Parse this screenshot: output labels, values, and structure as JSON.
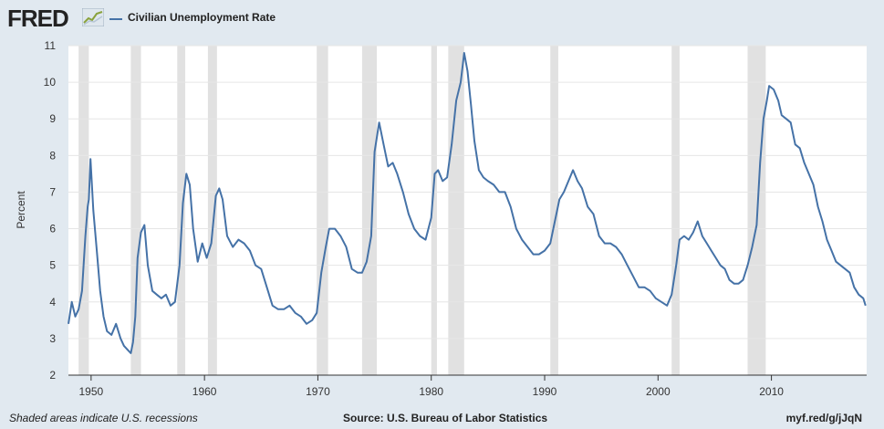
{
  "header": {
    "logo_text": "FRED",
    "logo_icon": "line-chart-icon",
    "legend_label": "Civilian Unemployment Rate",
    "series_color": "#4572a7"
  },
  "footer": {
    "recession_note": "Shaded areas indicate U.S. recessions",
    "source": "Source: U.S. Bureau of Labor Statistics",
    "short_url": "myf.red/g/jJqN"
  },
  "chart_data": {
    "type": "line",
    "ylabel": "Percent",
    "xlabel": "",
    "ylim": [
      2,
      11
    ],
    "xlim": [
      1948,
      2018.4
    ],
    "yticks": [
      "2",
      "3",
      "4",
      "5",
      "6",
      "7",
      "8",
      "9",
      "10",
      "11"
    ],
    "xticks": [
      "1950",
      "1960",
      "1970",
      "1980",
      "1990",
      "2000",
      "2010"
    ],
    "grid": true,
    "legend_position": "top-left",
    "recessions": [
      [
        1948.9,
        1949.8
      ],
      [
        1953.5,
        1954.4
      ],
      [
        1957.6,
        1958.3
      ],
      [
        1960.3,
        1961.1
      ],
      [
        1969.9,
        1970.9
      ],
      [
        1973.9,
        1975.2
      ],
      [
        1980.0,
        1980.5
      ],
      [
        1981.5,
        1982.9
      ],
      [
        1990.5,
        1991.2
      ],
      [
        2001.2,
        2001.9
      ],
      [
        2007.9,
        2009.5
      ]
    ],
    "series": [
      {
        "name": "Civilian Unemployment Rate",
        "color": "#4572a7",
        "x": [
          1948.0,
          1948.3,
          1948.6,
          1948.9,
          1949.2,
          1949.5,
          1949.7,
          1949.8,
          1949.95,
          1950.2,
          1950.5,
          1950.8,
          1951.1,
          1951.4,
          1951.8,
          1952.2,
          1952.6,
          1952.9,
          1953.2,
          1953.5,
          1953.7,
          1953.9,
          1954.1,
          1954.4,
          1954.7,
          1955.0,
          1955.4,
          1955.8,
          1956.2,
          1956.6,
          1957.0,
          1957.4,
          1957.8,
          1958.1,
          1958.4,
          1958.7,
          1959.0,
          1959.4,
          1959.8,
          1960.2,
          1960.6,
          1961.0,
          1961.3,
          1961.6,
          1962.0,
          1962.5,
          1963.0,
          1963.5,
          1964.0,
          1964.5,
          1965.0,
          1965.5,
          1966.0,
          1966.5,
          1967.0,
          1967.5,
          1968.0,
          1968.5,
          1969.0,
          1969.5,
          1969.9,
          1970.3,
          1970.7,
          1971.0,
          1971.5,
          1972.0,
          1972.5,
          1973.0,
          1973.5,
          1973.9,
          1974.3,
          1974.7,
          1975.0,
          1975.4,
          1975.8,
          1976.2,
          1976.6,
          1977.0,
          1977.5,
          1978.0,
          1978.5,
          1979.0,
          1979.5,
          1980.0,
          1980.3,
          1980.6,
          1981.0,
          1981.4,
          1981.8,
          1982.2,
          1982.6,
          1982.9,
          1983.2,
          1983.5,
          1983.8,
          1984.2,
          1984.6,
          1985.0,
          1985.5,
          1986.0,
          1986.5,
          1987.0,
          1987.5,
          1988.0,
          1988.5,
          1989.0,
          1989.5,
          1990.0,
          1990.5,
          1990.9,
          1991.3,
          1991.7,
          1992.1,
          1992.5,
          1992.9,
          1993.3,
          1993.8,
          1994.3,
          1994.8,
          1995.3,
          1995.8,
          1996.3,
          1996.8,
          1997.3,
          1997.8,
          1998.3,
          1998.8,
          1999.3,
          1999.8,
          2000.3,
          2000.8,
          2001.2,
          2001.6,
          2001.9,
          2002.3,
          2002.7,
          2003.1,
          2003.5,
          2003.9,
          2004.3,
          2004.7,
          2005.1,
          2005.5,
          2005.9,
          2006.3,
          2006.7,
          2007.1,
          2007.5,
          2007.9,
          2008.3,
          2008.7,
          2009.0,
          2009.3,
          2009.6,
          2009.8,
          2010.2,
          2010.6,
          2010.9,
          2011.3,
          2011.7,
          2012.1,
          2012.5,
          2012.9,
          2013.3,
          2013.7,
          2014.1,
          2014.5,
          2014.9,
          2015.3,
          2015.7,
          2016.1,
          2016.5,
          2016.9,
          2017.3,
          2017.7,
          2018.1,
          2018.3
        ],
        "values": [
          3.4,
          4.0,
          3.6,
          3.8,
          4.3,
          5.8,
          6.6,
          6.8,
          7.9,
          6.5,
          5.4,
          4.3,
          3.6,
          3.2,
          3.1,
          3.4,
          3.0,
          2.8,
          2.7,
          2.6,
          2.9,
          3.6,
          5.2,
          5.9,
          6.1,
          5.0,
          4.3,
          4.2,
          4.1,
          4.2,
          3.9,
          4.0,
          5.0,
          6.7,
          7.5,
          7.2,
          6.0,
          5.1,
          5.6,
          5.2,
          5.6,
          6.9,
          7.1,
          6.8,
          5.8,
          5.5,
          5.7,
          5.6,
          5.4,
          5.0,
          4.9,
          4.4,
          3.9,
          3.8,
          3.8,
          3.9,
          3.7,
          3.6,
          3.4,
          3.5,
          3.7,
          4.8,
          5.5,
          6.0,
          6.0,
          5.8,
          5.5,
          4.9,
          4.8,
          4.8,
          5.1,
          5.8,
          8.1,
          8.9,
          8.3,
          7.7,
          7.8,
          7.5,
          7.0,
          6.4,
          6.0,
          5.8,
          5.7,
          6.3,
          7.5,
          7.6,
          7.3,
          7.4,
          8.3,
          9.5,
          10.0,
          10.8,
          10.3,
          9.4,
          8.4,
          7.6,
          7.4,
          7.3,
          7.2,
          7.0,
          7.0,
          6.6,
          6.0,
          5.7,
          5.5,
          5.3,
          5.3,
          5.4,
          5.6,
          6.2,
          6.8,
          7.0,
          7.3,
          7.6,
          7.3,
          7.1,
          6.6,
          6.4,
          5.8,
          5.6,
          5.6,
          5.5,
          5.3,
          5.0,
          4.7,
          4.4,
          4.4,
          4.3,
          4.1,
          4.0,
          3.9,
          4.2,
          5.0,
          5.7,
          5.8,
          5.7,
          5.9,
          6.2,
          5.8,
          5.6,
          5.4,
          5.2,
          5.0,
          4.9,
          4.6,
          4.5,
          4.5,
          4.6,
          5.0,
          5.5,
          6.1,
          7.8,
          9.0,
          9.5,
          9.9,
          9.8,
          9.5,
          9.1,
          9.0,
          8.9,
          8.3,
          8.2,
          7.8,
          7.5,
          7.2,
          6.6,
          6.2,
          5.7,
          5.4,
          5.1,
          5.0,
          4.9,
          4.8,
          4.4,
          4.2,
          4.1,
          3.9
        ]
      }
    ]
  }
}
